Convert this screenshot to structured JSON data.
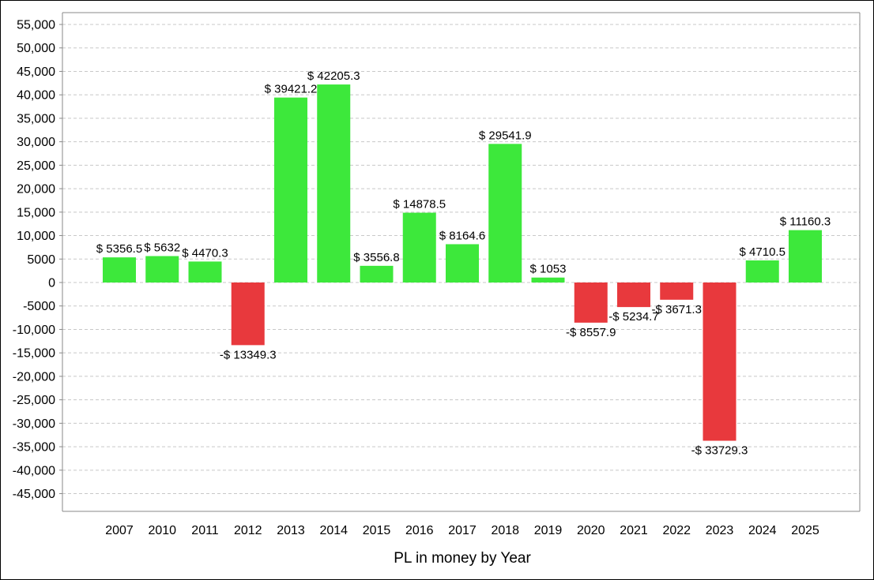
{
  "chart_data": {
    "type": "bar",
    "xlabel": "PL in money by Year",
    "ylabel": "",
    "ylim": [
      -50000,
      57500
    ],
    "yticks": [
      55000,
      50000,
      45000,
      40000,
      35000,
      30000,
      25000,
      20000,
      15000,
      10000,
      5000,
      0,
      -5000,
      -10000,
      -15000,
      -20000,
      -25000,
      -30000,
      -35000,
      -40000,
      -45000
    ],
    "ytick_labels": [
      "55,000",
      "50,000",
      "45,000",
      "40,000",
      "35,000",
      "30,000",
      "25,000",
      "20,000",
      "15,000",
      "10,000",
      "5000",
      "0",
      "-5000",
      "-10,000",
      "-15,000",
      "-20,000",
      "-25,000",
      "-30,000",
      "-35,000",
      "-40,000",
      "-45,000"
    ],
    "grid": true,
    "legend": "none",
    "categories": [
      "2007",
      "2010",
      "2011",
      "2012",
      "2013",
      "2014",
      "2015",
      "2016",
      "2017",
      "2018",
      "2019",
      "2020",
      "2021",
      "2022",
      "2023",
      "2024",
      "2025"
    ],
    "values": [
      5356.5,
      5632,
      4470.3,
      -13349.3,
      39421.2,
      42205.3,
      3556.8,
      14878.5,
      8164.6,
      29541.9,
      1053,
      -8557.9,
      -5234.7,
      -3671.3,
      -33729.3,
      4710.5,
      11160.3
    ],
    "data_labels": [
      "$ 5356.5",
      "$ 5632",
      "$ 4470.3",
      "-$ 13349.3",
      "$ 39421.2",
      "$ 42205.3",
      "$ 3556.8",
      "$ 14878.5",
      "$ 8164.6",
      "$ 29541.9",
      "$ 1053",
      "-$ 8557.9",
      "-$ 5234.7",
      "-$ 3671.3",
      "-$ 33729.3",
      "$ 4710.5",
      "$ 11160.3"
    ],
    "colors": {
      "positive": "#3de83b",
      "negative": "#e8393d",
      "grid": "#c8c8c8",
      "axis": "#888888"
    }
  }
}
